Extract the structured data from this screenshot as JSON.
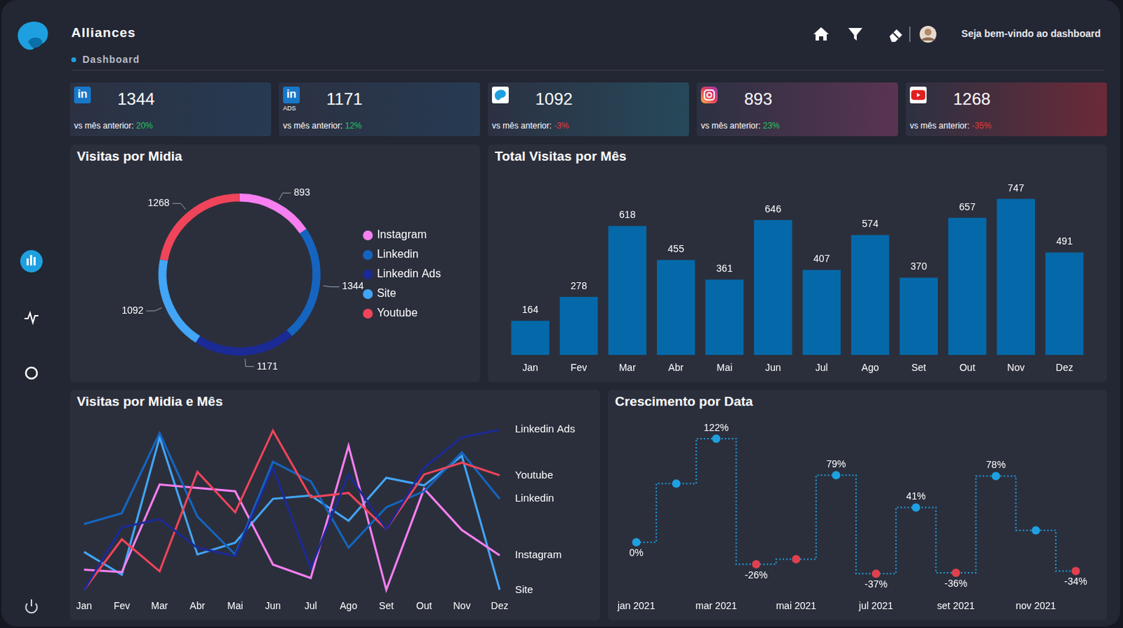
{
  "header": {
    "title": "Alliances",
    "breadcrumb": "Dashboard",
    "welcome": "Seja bem-vindo ao dashboard"
  },
  "cards": [
    {
      "icon_text": "in",
      "value": 1344,
      "compare_label": "vs mês anterior:",
      "change": "20%"
    },
    {
      "icon_text": "in",
      "icon_subtext": "ADS",
      "value": 1171,
      "compare_label": "vs mês anterior:",
      "change": "12%"
    },
    {
      "value": 1092,
      "compare_label": "vs mês anterior:",
      "change": "-3%"
    },
    {
      "value": 893,
      "compare_label": "vs mês anterior:",
      "change": "23%"
    },
    {
      "value": 1268,
      "compare_label": "vs mês anterior:",
      "change": "-35%"
    }
  ],
  "chart_data": [
    {
      "type": "doughnut",
      "title": "Visitas por Midia",
      "categories": [
        "Instagram",
        "Linkedin",
        "Linkedin Ads",
        "Site",
        "Youtube"
      ],
      "values": [
        893,
        1344,
        1171,
        1092,
        1268
      ],
      "colors": [
        "#f77ff0",
        "#1565c0",
        "#1c2a96",
        "#42a5f5",
        "#f0445a"
      ],
      "legend": "right",
      "data_labels": true
    },
    {
      "type": "bar",
      "title": "Total Visitas por Mês",
      "categories": [
        "Jan",
        "Fev",
        "Mar",
        "Abr",
        "Mai",
        "Jun",
        "Jul",
        "Ago",
        "Set",
        "Out",
        "Nov",
        "Dez"
      ],
      "values": [
        164,
        278,
        618,
        455,
        361,
        646,
        407,
        574,
        370,
        657,
        747,
        491
      ],
      "color": "#0569a9",
      "ylim": [
        0,
        800
      ],
      "grid": false,
      "data_labels": true,
      "tick_labels": "x"
    },
    {
      "type": "line",
      "title": "Visitas por Midia e Mês",
      "categories": [
        "Jan",
        "Fev",
        "Mar",
        "Abr",
        "Mai",
        "Jun",
        "Jul",
        "Ago",
        "Set",
        "Out",
        "Nov",
        "Dez"
      ],
      "series": [
        {
          "name": "Linkedin Ads",
          "color": "#1c2a96",
          "values": [
            4,
            78,
            88,
            54,
            44,
            149,
            30,
            141,
            76,
            149,
            185,
            194
          ]
        },
        {
          "name": "Youtube",
          "color": "#f0445a",
          "values": [
            4,
            64,
            26,
            144,
            96,
            193,
            114,
            119,
            76,
            141,
            155,
            140
          ]
        },
        {
          "name": "Linkedin",
          "color": "#1565c0",
          "values": [
            82,
            95,
            190,
            91,
            46,
            156,
            133,
            54,
            102,
            121,
            167,
            112
          ]
        },
        {
          "name": "Instagram",
          "color": "#f77ff0",
          "values": [
            28,
            25,
            129,
            125,
            121,
            34,
            18,
            175,
            4,
            124,
            75,
            45
          ]
        },
        {
          "name": "Site",
          "color": "#42a5f5",
          "values": [
            49,
            22,
            185,
            46,
            60,
            112,
            116,
            86,
            137,
            128,
            163,
            4
          ]
        }
      ],
      "ylim": [
        0,
        200
      ],
      "grid": false,
      "tick_labels": "x",
      "marker": "none"
    },
    {
      "type": "step",
      "title": "Crescimento por Data",
      "categories": [
        "jan 2021",
        null,
        "mar 2021",
        null,
        "mai 2021",
        null,
        "jul 2021",
        null,
        "set 2021",
        null,
        "nov 2021",
        null
      ],
      "values": [
        0,
        69,
        122,
        -26,
        -20,
        79,
        -37,
        41,
        -36,
        78,
        14,
        -34
      ],
      "value_labels": [
        "0%",
        null,
        "122%",
        "-26%",
        null,
        "79%",
        "-37%",
        "41%",
        "-36%",
        "78%",
        null,
        "-34%"
      ],
      "color": "#1ea0e0",
      "colors": [
        "#1ea0e0",
        "#1ea0e0",
        "#1ea0e0",
        "#e0404e",
        "#e0404e",
        "#1ea0e0",
        "#e0404e",
        "#1ea0e0",
        "#e0404e",
        "#1ea0e0",
        "#1ea0e0",
        "#e0404e"
      ],
      "ylim": [
        -60,
        140
      ],
      "grid": false,
      "tick_labels": "x",
      "line_style": "dotted",
      "marker": "circle",
      "data_labels": true
    }
  ]
}
